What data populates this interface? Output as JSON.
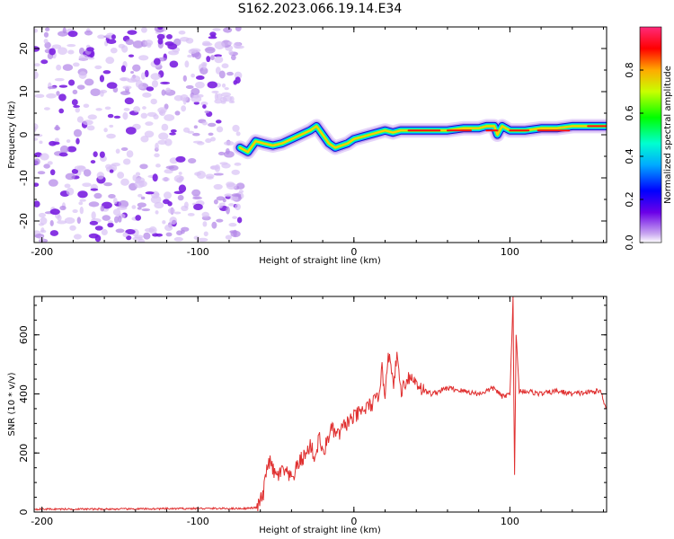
{
  "title": "S162.2023.066.19.14.E34",
  "colors": {
    "snr_line": "#e03030",
    "noise_purple": "#8a2be2",
    "axis": "#000000"
  },
  "chart_data": [
    {
      "type": "heatmap",
      "xlabel": "Height of straight line (km)",
      "ylabel": "Frequency (Hz)",
      "xlim": [
        -205,
        162
      ],
      "ylim": [
        -25,
        25
      ],
      "x_ticks": [
        -200,
        -100,
        0,
        100
      ],
      "y_ticks": [
        -20,
        -10,
        0,
        10,
        20
      ],
      "noise_region": [
        -205,
        -72
      ],
      "signal_trace": {
        "x": [
          -73,
          -68,
          -63,
          -58,
          -52,
          -46,
          -40,
          -34,
          -28,
          -24,
          -20,
          -16,
          -12,
          -8,
          -4,
          0,
          5,
          10,
          15,
          20,
          25,
          30,
          35,
          40,
          50,
          60,
          70,
          80,
          85,
          90,
          92,
          95,
          100,
          110,
          120,
          130,
          140,
          150,
          162
        ],
        "y": [
          -3,
          -4,
          -1.5,
          -2,
          -2.5,
          -2,
          -1,
          0,
          1,
          2,
          0,
          -2,
          -3,
          -2.5,
          -2,
          -1,
          -0.5,
          0,
          0.5,
          1,
          0.5,
          1,
          1,
          1,
          1,
          1,
          1.5,
          1.5,
          2,
          2,
          0,
          2,
          1,
          1,
          1.5,
          1.5,
          2,
          2,
          2
        ]
      },
      "colorbar": {
        "label": "Normalized spectral amplitude",
        "ticks": [
          "0.0",
          "0.2",
          "0.4",
          "0.6",
          "0.8"
        ],
        "range": [
          0,
          1
        ]
      }
    },
    {
      "type": "line",
      "xlabel": "Height of straight line (km)",
      "ylabel": "SNR (10 * v/v)",
      "xlim": [
        -205,
        162
      ],
      "ylim": [
        0,
        730
      ],
      "x_ticks": [
        -200,
        -100,
        0,
        100
      ],
      "y_ticks": [
        0,
        200,
        400,
        600
      ],
      "series": [
        {
          "x": [
            -205,
            -150,
            -100,
            -70,
            -62,
            -58,
            -55,
            -50,
            -45,
            -40,
            -35,
            -30,
            -28,
            -25,
            -22,
            -20,
            -15,
            -10,
            -5,
            0,
            5,
            10,
            15,
            18,
            20,
            22,
            25,
            28,
            30,
            35,
            40,
            45,
            50,
            60,
            70,
            80,
            90,
            95,
            100,
            102,
            103,
            104,
            106,
            110,
            120,
            130,
            140,
            150,
            158,
            162
          ],
          "y": [
            10,
            10,
            12,
            12,
            15,
            60,
            180,
            120,
            140,
            110,
            170,
            200,
            230,
            180,
            260,
            190,
            280,
            260,
            300,
            320,
            340,
            360,
            380,
            480,
            400,
            550,
            430,
            530,
            410,
            460,
            440,
            410,
            400,
            420,
            410,
            400,
            420,
            390,
            400,
            720,
            120,
            600,
            410,
            410,
            400,
            410,
            400,
            405,
            410,
            350
          ]
        }
      ]
    }
  ]
}
